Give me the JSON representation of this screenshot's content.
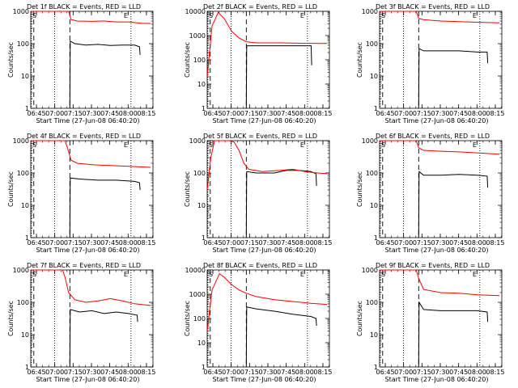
{
  "figure": {
    "xlabel": "Start Time (27-Jun-08 06:40:20)",
    "ylabel": "Counts/sec",
    "x_tick_labels": [
      "06:45",
      "07:00",
      "07:15",
      "07:30",
      "07:45",
      "08:00",
      "08:15"
    ],
    "y_tick_labels": [
      "1",
      "10",
      "100",
      "1000"
    ],
    "marker_labels": [
      "S",
      "E"
    ],
    "colors": {
      "events": "#000000",
      "lld": "#ff0000",
      "axes": "#000000",
      "background": "#ffffff"
    }
  },
  "chart_data": [
    {
      "type": "line",
      "title": "Det 1f BLACK = Events, RED = LLD",
      "x_unit": "minutes after 06:40:20 on 27-Jun-08",
      "xlim": [
        0,
        100
      ],
      "ylim": [
        1,
        1000
      ],
      "y_scale": "log",
      "dotted_lines_x": [
        0.5,
        19.5,
        82
      ],
      "dashed_lines_x": [
        2.5,
        32
      ],
      "series": [
        {
          "name": "Events",
          "color": "#000000",
          "x": [
            32,
            32.3,
            36,
            45,
            55,
            65,
            75,
            85,
            89,
            89.5
          ],
          "y": [
            1,
            120,
            100,
            90,
            95,
            88,
            90,
            90,
            80,
            45
          ]
        },
        {
          "name": "LLD",
          "color": "#ff0000",
          "x": [
            0,
            2,
            15,
            28,
            31,
            33,
            38,
            50,
            60,
            70,
            80,
            90,
            98
          ],
          "y": [
            1000,
            1000,
            1000,
            1000,
            1000,
            560,
            500,
            490,
            500,
            470,
            470,
            430,
            420
          ]
        }
      ]
    },
    {
      "type": "line",
      "title": "Det 2f BLACK = Events, RED = LLD",
      "x_unit": "minutes after 06:40:20 on 27-Jun-08",
      "xlim": [
        0,
        100
      ],
      "ylim": [
        1,
        10000
      ],
      "y_scale": "log",
      "dotted_lines_x": [
        0.5,
        19.5,
        82
      ],
      "dashed_lines_x": [
        2.5,
        32
      ],
      "series": [
        {
          "name": "Events",
          "color": "#000000",
          "x": [
            32,
            32.3,
            36,
            50,
            65,
            80,
            85,
            85.5
          ],
          "y": [
            1,
            380,
            380,
            380,
            380,
            380,
            380,
            60
          ]
        },
        {
          "name": "LLD",
          "color": "#ff0000",
          "x": [
            0,
            4,
            9,
            14,
            20,
            26,
            32,
            40,
            60,
            80,
            98
          ],
          "y": [
            20,
            2500,
            9000,
            5000,
            1500,
            800,
            560,
            500,
            500,
            480,
            470
          ]
        }
      ]
    },
    {
      "type": "line",
      "title": "Det 3f BLACK = Events, RED = LLD",
      "x_unit": "minutes after 06:40:20 on 27-Jun-08",
      "xlim": [
        0,
        100
      ],
      "ylim": [
        1,
        1000
      ],
      "y_scale": "log",
      "dotted_lines_x": [
        0.5,
        19.5,
        82
      ],
      "dashed_lines_x": [
        2.5,
        32
      ],
      "series": [
        {
          "name": "Events",
          "color": "#000000",
          "x": [
            32,
            32.3,
            36,
            50,
            65,
            80,
            88,
            88.5
          ],
          "y": [
            1,
            70,
            60,
            60,
            60,
            55,
            55,
            25
          ]
        },
        {
          "name": "LLD",
          "color": "#ff0000",
          "x": [
            0,
            2,
            30,
            32,
            36,
            50,
            65,
            80,
            98
          ],
          "y": [
            1000,
            1000,
            1000,
            600,
            550,
            500,
            480,
            460,
            440
          ]
        }
      ]
    },
    {
      "type": "line",
      "title": "Det 4f BLACK = Events, RED = LLD",
      "x_unit": "minutes after 06:40:20 on 27-Jun-08",
      "xlim": [
        0,
        100
      ],
      "ylim": [
        1,
        1000
      ],
      "y_scale": "log",
      "dotted_lines_x": [
        0.5,
        19.5,
        82
      ],
      "dashed_lines_x": [
        2.5,
        32
      ],
      "series": [
        {
          "name": "Events",
          "color": "#000000",
          "x": [
            32,
            32.3,
            40,
            55,
            70,
            85,
            89,
            89.5
          ],
          "y": [
            1,
            70,
            65,
            60,
            60,
            55,
            50,
            30
          ]
        },
        {
          "name": "LLD",
          "color": "#ff0000",
          "x": [
            0,
            2,
            28,
            30,
            33,
            38,
            50,
            65,
            80,
            98
          ],
          "y": [
            1000,
            1000,
            1000,
            600,
            250,
            200,
            180,
            170,
            160,
            150
          ]
        }
      ]
    },
    {
      "type": "line",
      "title": "Det 5f BLACK = Events, RED = LLD",
      "x_unit": "minutes after 06:40:20 on 27-Jun-08",
      "xlim": [
        0,
        100
      ],
      "ylim": [
        1,
        1000
      ],
      "y_scale": "log",
      "dotted_lines_x": [
        0.5,
        19.5,
        82
      ],
      "dashed_lines_x": [
        2.5,
        32
      ],
      "series": [
        {
          "name": "Events",
          "color": "#000000",
          "x": [
            32,
            32.3,
            40,
            55,
            65,
            75,
            85,
            89,
            89.5
          ],
          "y": [
            1,
            110,
            100,
            100,
            120,
            120,
            110,
            95,
            40
          ]
        },
        {
          "name": "LLD",
          "color": "#ff0000",
          "x": [
            0,
            3,
            6,
            12,
            18,
            22,
            26,
            30,
            34,
            45,
            60,
            70,
            80,
            90,
            98
          ],
          "y": [
            30,
            300,
            1000,
            1000,
            1000,
            900,
            500,
            200,
            130,
            110,
            120,
            130,
            110,
            100,
            95
          ]
        }
      ]
    },
    {
      "type": "line",
      "title": "Det 6f BLACK = Events, RED = LLD",
      "x_unit": "minutes after 06:40:20 on 27-Jun-08",
      "xlim": [
        0,
        100
      ],
      "ylim": [
        1,
        1000
      ],
      "y_scale": "log",
      "dotted_lines_x": [
        0.5,
        19.5,
        82
      ],
      "dashed_lines_x": [
        2.5,
        32
      ],
      "series": [
        {
          "name": "Events",
          "color": "#000000",
          "x": [
            32,
            32.3,
            36,
            50,
            65,
            80,
            88,
            88.5
          ],
          "y": [
            1,
            110,
            85,
            85,
            90,
            85,
            80,
            35
          ]
        },
        {
          "name": "LLD",
          "color": "#ff0000",
          "x": [
            0,
            2,
            30,
            32,
            36,
            50,
            65,
            80,
            98
          ],
          "y": [
            1000,
            1000,
            1000,
            600,
            500,
            470,
            450,
            420,
            380
          ]
        }
      ]
    },
    {
      "type": "line",
      "title": "Det 7f BLACK = Events, RED = LLD",
      "x_unit": "minutes after 06:40:20 on 27-Jun-08",
      "xlim": [
        0,
        100
      ],
      "ylim": [
        1,
        1000
      ],
      "y_scale": "log",
      "dotted_lines_x": [
        0.5,
        19.5,
        82
      ],
      "dashed_lines_x": [
        2.5,
        32
      ],
      "series": [
        {
          "name": "Events",
          "color": "#000000",
          "x": [
            32,
            32.3,
            40,
            50,
            60,
            70,
            80,
            87,
            87.5
          ],
          "y": [
            1,
            60,
            50,
            55,
            45,
            50,
            45,
            40,
            25
          ]
        },
        {
          "name": "LLD",
          "color": "#ff0000",
          "x": [
            0,
            2,
            26,
            28,
            31,
            36,
            45,
            55,
            65,
            75,
            85,
            98
          ],
          "y": [
            1000,
            1000,
            1000,
            600,
            200,
            120,
            100,
            110,
            130,
            110,
            90,
            80
          ]
        }
      ]
    },
    {
      "type": "line",
      "title": "Det 8f BLACK = Events, RED = LLD",
      "x_unit": "minutes after 06:40:20 on 27-Jun-08",
      "xlim": [
        0,
        100
      ],
      "ylim": [
        1,
        10000
      ],
      "y_scale": "log",
      "dotted_lines_x": [
        0.5,
        19.5,
        82
      ],
      "dashed_lines_x": [
        2.5,
        32
      ],
      "series": [
        {
          "name": "Events",
          "color": "#000000",
          "x": [
            32,
            32.3,
            40,
            55,
            70,
            85,
            89,
            89.5
          ],
          "y": [
            1,
            300,
            250,
            200,
            150,
            120,
            100,
            50
          ]
        },
        {
          "name": "LLD",
          "color": "#ff0000",
          "x": [
            0,
            4,
            10,
            14,
            20,
            26,
            32,
            40,
            55,
            70,
            85,
            98
          ],
          "y": [
            30,
            1500,
            7000,
            5000,
            2500,
            1500,
            1100,
            800,
            600,
            500,
            420,
            380
          ]
        }
      ]
    },
    {
      "type": "line",
      "title": "Det 9f BLACK = Events, RED = LLD",
      "x_unit": "minutes after 06:40:20 on 27-Jun-08",
      "xlim": [
        0,
        100
      ],
      "ylim": [
        1,
        1000
      ],
      "y_scale": "log",
      "dotted_lines_x": [
        0.5,
        19.5,
        82
      ],
      "dashed_lines_x": [
        2.5,
        32
      ],
      "series": [
        {
          "name": "Events",
          "color": "#000000",
          "x": [
            32,
            32.3,
            36,
            50,
            65,
            80,
            88,
            88.5
          ],
          "y": [
            1,
            100,
            60,
            55,
            55,
            55,
            50,
            25
          ]
        },
        {
          "name": "LLD",
          "color": "#ff0000",
          "x": [
            0,
            2,
            30,
            32,
            36,
            50,
            65,
            80,
            98
          ],
          "y": [
            1000,
            1000,
            1000,
            550,
            250,
            200,
            190,
            170,
            160
          ]
        }
      ]
    }
  ]
}
